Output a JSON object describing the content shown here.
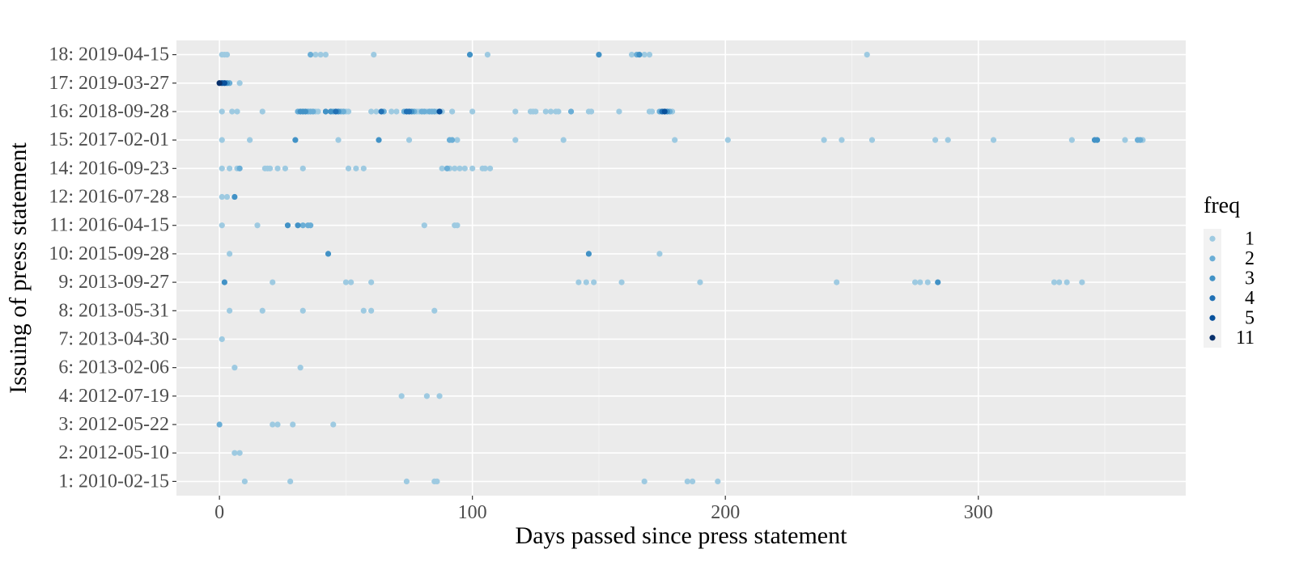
{
  "chart_data": {
    "type": "scatter",
    "title": "",
    "xlabel": "Days passed since press statement",
    "ylabel": "Issuing of press statement",
    "xlim": [
      -17,
      382
    ],
    "x_ticks": [
      0,
      100,
      200,
      300
    ],
    "categories": [
      "1: 2010-02-15",
      "2: 2012-05-10",
      "3: 2012-05-22",
      "4: 2012-07-19",
      "6: 2013-02-06",
      "7: 2013-04-30",
      "8: 2013-05-31",
      "9: 2013-09-27",
      "10: 2015-09-28",
      "11: 2016-04-15",
      "12: 2016-07-28",
      "14: 2016-09-23",
      "15: 2017-02-01",
      "16: 2018-09-28",
      "17: 2019-03-27",
      "18: 2019-04-15"
    ],
    "grid": true,
    "background": "#ebebeb",
    "legend": {
      "title": "freq",
      "position": "right",
      "levels": [
        "1",
        "2",
        "3",
        "4",
        "5",
        "11"
      ],
      "colors": [
        "#9ecae1",
        "#6baed6",
        "#4292c6",
        "#2171b5",
        "#08519c",
        "#08306b"
      ]
    },
    "points": [
      {
        "cat": "1: 2010-02-15",
        "x": [
          10,
          28,
          74,
          85,
          86,
          168,
          185,
          187,
          197
        ],
        "freq": [
          1,
          1,
          1,
          1,
          1,
          1,
          1,
          1,
          1
        ]
      },
      {
        "cat": "2: 2012-05-10",
        "x": [
          6,
          8
        ],
        "freq": [
          1,
          1
        ]
      },
      {
        "cat": "3: 2012-05-22",
        "x": [
          0,
          21,
          23,
          29,
          45
        ],
        "freq": [
          2,
          1,
          1,
          1,
          1
        ]
      },
      {
        "cat": "4: 2012-07-19",
        "x": [
          72,
          82,
          87
        ],
        "freq": [
          1,
          1,
          1
        ]
      },
      {
        "cat": "6: 2013-02-06",
        "x": [
          6,
          32
        ],
        "freq": [
          1,
          1
        ]
      },
      {
        "cat": "7: 2013-04-30",
        "x": [
          1
        ],
        "freq": [
          1
        ]
      },
      {
        "cat": "8: 2013-05-31",
        "x": [
          4,
          17,
          33,
          57,
          60,
          85
        ],
        "freq": [
          1,
          1,
          1,
          1,
          1,
          1
        ]
      },
      {
        "cat": "9: 2013-09-27",
        "x": [
          2,
          21,
          50,
          52,
          60,
          142,
          145,
          148,
          159,
          190,
          244,
          275,
          277,
          280,
          284,
          330,
          332,
          335,
          341
        ],
        "freq": [
          3,
          1,
          1,
          1,
          1,
          1,
          1,
          1,
          1,
          1,
          1,
          1,
          1,
          1,
          3,
          1,
          1,
          1,
          1
        ]
      },
      {
        "cat": "10: 2015-09-28",
        "x": [
          4,
          43,
          146,
          174
        ],
        "freq": [
          1,
          3,
          3,
          1
        ]
      },
      {
        "cat": "11: 2016-04-15",
        "x": [
          1,
          15,
          27,
          31,
          33,
          35,
          36,
          81,
          93,
          94
        ],
        "freq": [
          1,
          1,
          3,
          3,
          2,
          2,
          2,
          1,
          1,
          1
        ]
      },
      {
        "cat": "12: 2016-07-28",
        "x": [
          1,
          3,
          6
        ],
        "freq": [
          1,
          1,
          3
        ]
      },
      {
        "cat": "14: 2016-09-23",
        "x": [
          1,
          4,
          7,
          8,
          18,
          19,
          20,
          23,
          26,
          33,
          51,
          54,
          57,
          88,
          90,
          91,
          93,
          95,
          97,
          100,
          104,
          105,
          107
        ],
        "freq": [
          1,
          1,
          1,
          2,
          1,
          1,
          1,
          1,
          1,
          1,
          1,
          1,
          1,
          1,
          2,
          1,
          1,
          1,
          1,
          1,
          1,
          1,
          1
        ]
      },
      {
        "cat": "15: 2017-02-01",
        "x": [
          1,
          12,
          30,
          47,
          63,
          75,
          91,
          92,
          94,
          117,
          136,
          180,
          201,
          239,
          246,
          258,
          283,
          288,
          306,
          337,
          346,
          347,
          358,
          363,
          364,
          365
        ],
        "freq": [
          1,
          1,
          3,
          1,
          3,
          1,
          2,
          2,
          1,
          1,
          1,
          1,
          1,
          1,
          1,
          1,
          1,
          1,
          1,
          1,
          3,
          3,
          1,
          2,
          2,
          1
        ]
      },
      {
        "cat": "16: 2018-09-28",
        "x": [
          1,
          5,
          7,
          17,
          31,
          32,
          33,
          34,
          35,
          36,
          37,
          38,
          39,
          42,
          44,
          45,
          46,
          47,
          48,
          49,
          50,
          51,
          60,
          62,
          64,
          65,
          68,
          70,
          73,
          74,
          75,
          76,
          77,
          78,
          79,
          80,
          81,
          82,
          83,
          84,
          85,
          86,
          87,
          88,
          92,
          100,
          117,
          123,
          124,
          125,
          129,
          131,
          133,
          134,
          139,
          146,
          147,
          158,
          170,
          171,
          174,
          175,
          176,
          177,
          178,
          179
        ],
        "freq": [
          1,
          1,
          1,
          1,
          2,
          3,
          3,
          3,
          2,
          2,
          2,
          1,
          1,
          3,
          3,
          2,
          4,
          3,
          2,
          2,
          1,
          1,
          1,
          1,
          4,
          2,
          1,
          1,
          2,
          4,
          4,
          3,
          2,
          1,
          1,
          2,
          2,
          1,
          2,
          2,
          2,
          1,
          5,
          1,
          1,
          1,
          1,
          1,
          1,
          1,
          1,
          1,
          1,
          1,
          2,
          1,
          1,
          1,
          1,
          1,
          2,
          4,
          5,
          3,
          2,
          1
        ]
      },
      {
        "cat": "17: 2019-03-27",
        "x": [
          0,
          1,
          2,
          3,
          4,
          8
        ],
        "freq": [
          11,
          5,
          5,
          3,
          2,
          1
        ]
      },
      {
        "cat": "18: 2019-04-15",
        "x": [
          1,
          2,
          3,
          36,
          38,
          40,
          42,
          61,
          99,
          106,
          150,
          163,
          165,
          166,
          168,
          170,
          256
        ],
        "freq": [
          1,
          1,
          1,
          2,
          1,
          1,
          1,
          1,
          3,
          1,
          3,
          1,
          2,
          3,
          1,
          1,
          1
        ]
      }
    ]
  }
}
